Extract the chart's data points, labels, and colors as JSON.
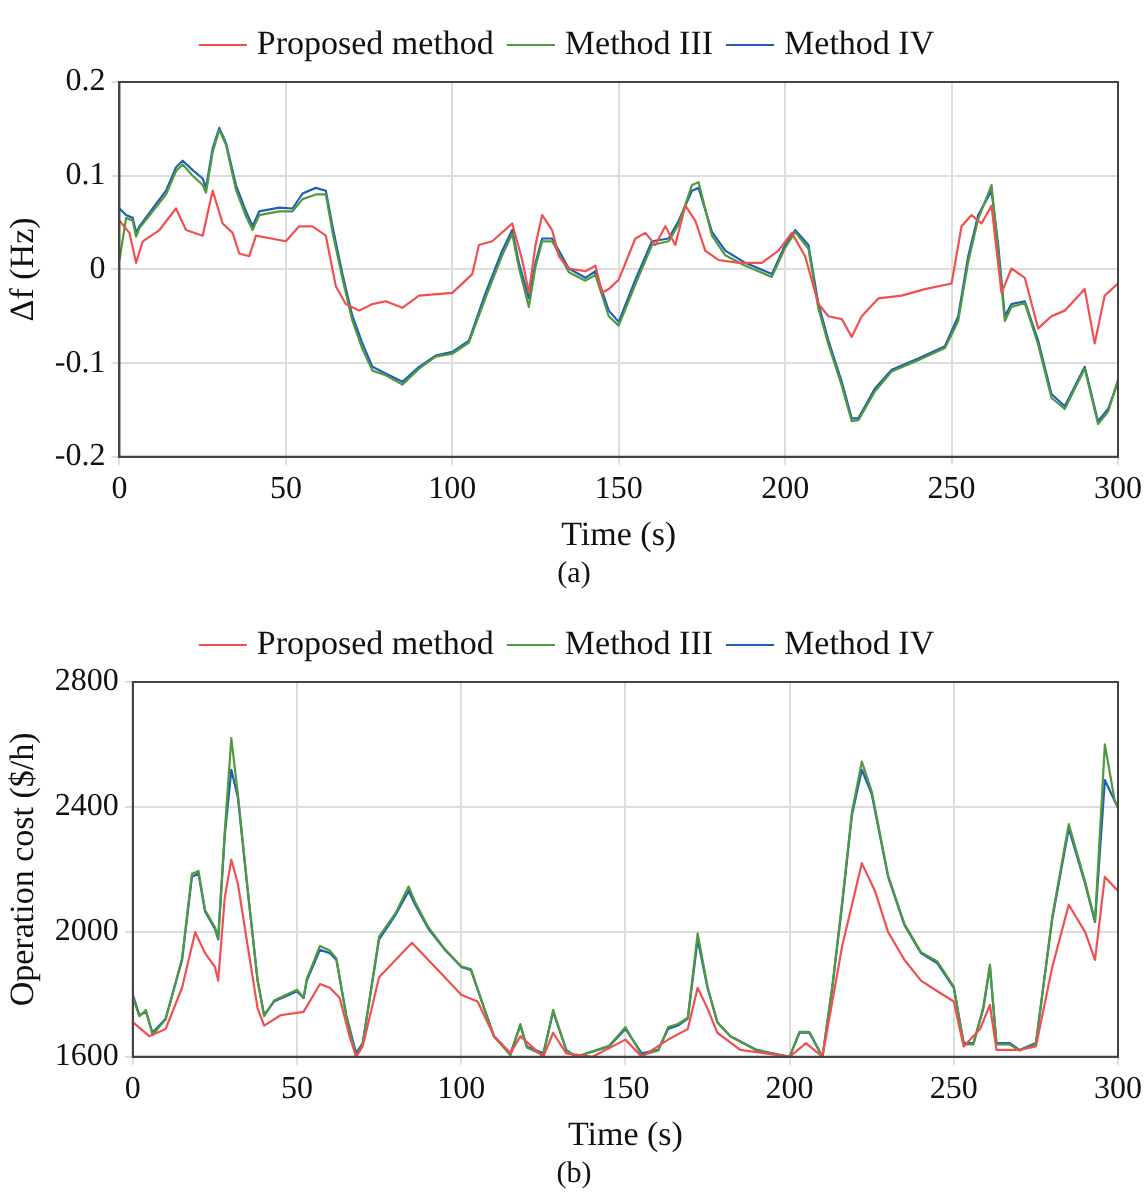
{
  "chart_data": [
    {
      "type": "line",
      "xlabel": "Time (s)",
      "ylabel": "Δf (Hz)",
      "annotations": [
        "(a)"
      ],
      "xlim": [
        0,
        300
      ],
      "xticks": [
        0,
        50,
        100,
        150,
        200,
        250,
        300
      ],
      "ylim": [
        -0.2,
        0.2
      ],
      "yticks": [
        -0.2,
        -0.1,
        0,
        0.1,
        0.2
      ],
      "grid": true,
      "legend": "top",
      "series": [
        {
          "name": "Proposed method",
          "color": "#f05050",
          "x": [
            0,
            3,
            5,
            7,
            12,
            17,
            20,
            25,
            28,
            31,
            34,
            36,
            39,
            41,
            50,
            54,
            58,
            62,
            65,
            68,
            72,
            76,
            80,
            85,
            90,
            100,
            106,
            108,
            112,
            118,
            121,
            123,
            125,
            127,
            130,
            132,
            135,
            140,
            143,
            145,
            147,
            150,
            155,
            158,
            161,
            164,
            167,
            170,
            173,
            176,
            180,
            186,
            193,
            198,
            202,
            206,
            210,
            213,
            217,
            220,
            223,
            228,
            235,
            242,
            250,
            253,
            256,
            259,
            262,
            265,
            268,
            272,
            276,
            280,
            284,
            290,
            293,
            296,
            300
          ],
          "values": [
            0.052,
            0.039,
            0.007,
            0.03,
            0.042,
            0.065,
            0.042,
            0.036,
            0.084,
            0.049,
            0.039,
            0.017,
            0.014,
            0.036,
            0.03,
            0.046,
            0.046,
            0.036,
            -0.018,
            -0.037,
            -0.044,
            -0.037,
            -0.034,
            -0.041,
            -0.028,
            -0.025,
            -0.005,
            0.026,
            0.03,
            0.049,
            0.01,
            -0.025,
            0.026,
            0.058,
            0.042,
            0.014,
            0.001,
            -0.002,
            0.004,
            -0.025,
            -0.021,
            -0.011,
            0.033,
            0.039,
            0.026,
            0.046,
            0.026,
            0.068,
            0.052,
            0.02,
            0.01,
            0.007,
            0.007,
            0.02,
            0.039,
            0.014,
            -0.037,
            -0.05,
            -0.053,
            -0.072,
            -0.05,
            -0.031,
            -0.028,
            -0.021,
            -0.015,
            0.046,
            0.058,
            0.049,
            0.068,
            -0.025,
            0.001,
            -0.009,
            -0.063,
            -0.05,
            -0.044,
            -0.021,
            -0.079,
            -0.028,
            -0.015
          ]
        },
        {
          "name": "Method III",
          "color": "#4f9a3c",
          "x": [
            0,
            2,
            4,
            5,
            6,
            10,
            14,
            17,
            19,
            22,
            25,
            26,
            28,
            30,
            32,
            35,
            38,
            40,
            42,
            48,
            52,
            55,
            59,
            62,
            64,
            67,
            70,
            73,
            76,
            80,
            85,
            90,
            95,
            100,
            105,
            110,
            115,
            118,
            120,
            123,
            125,
            127,
            130,
            135,
            140,
            143,
            147,
            150,
            155,
            160,
            165,
            168,
            172,
            174,
            178,
            182,
            188,
            196,
            200,
            203,
            207,
            210,
            213,
            217,
            220,
            222,
            227,
            232,
            240,
            248,
            252,
            255,
            258,
            262,
            264,
            266,
            268,
            272,
            276,
            280,
            284,
            290,
            294,
            297,
            300
          ],
          "values": [
            0.01,
            0.055,
            0.052,
            0.035,
            0.044,
            0.062,
            0.08,
            0.105,
            0.112,
            0.1,
            0.09,
            0.082,
            0.125,
            0.149,
            0.133,
            0.085,
            0.057,
            0.042,
            0.058,
            0.062,
            0.062,
            0.075,
            0.08,
            0.08,
            0.04,
            -0.01,
            -0.055,
            -0.085,
            -0.108,
            -0.113,
            -0.123,
            -0.106,
            -0.093,
            -0.09,
            -0.078,
            -0.03,
            0.015,
            0.038,
            0.002,
            -0.04,
            0.003,
            0.03,
            0.03,
            -0.003,
            -0.012,
            -0.006,
            -0.05,
            -0.06,
            -0.016,
            0.026,
            0.03,
            0.048,
            0.09,
            0.093,
            0.036,
            0.015,
            0.004,
            -0.008,
            0.023,
            0.04,
            0.022,
            -0.042,
            -0.08,
            -0.124,
            -0.162,
            -0.161,
            -0.13,
            -0.109,
            -0.097,
            -0.084,
            -0.055,
            0.008,
            0.054,
            0.09,
            0.02,
            -0.055,
            -0.04,
            -0.036,
            -0.08,
            -0.137,
            -0.149,
            -0.106,
            -0.165,
            -0.152,
            -0.118
          ]
        },
        {
          "name": "Method IV",
          "color": "#1f5fb8",
          "x": [
            0,
            2,
            4,
            5,
            6,
            10,
            14,
            17,
            19,
            22,
            25,
            26,
            28,
            30,
            32,
            35,
            38,
            40,
            42,
            48,
            52,
            55,
            59,
            62,
            64,
            67,
            70,
            73,
            76,
            80,
            85,
            90,
            95,
            100,
            105,
            110,
            115,
            118,
            120,
            123,
            125,
            127,
            130,
            135,
            140,
            143,
            147,
            150,
            155,
            160,
            165,
            168,
            172,
            174,
            178,
            182,
            188,
            196,
            200,
            203,
            207,
            210,
            213,
            217,
            220,
            222,
            227,
            232,
            240,
            248,
            252,
            255,
            258,
            262,
            264,
            266,
            268,
            272,
            276,
            280,
            284,
            290,
            294,
            297,
            300
          ],
          "values": [
            0.065,
            0.058,
            0.055,
            0.039,
            0.046,
            0.065,
            0.084,
            0.109,
            0.116,
            0.106,
            0.097,
            0.087,
            0.129,
            0.151,
            0.135,
            0.09,
            0.062,
            0.046,
            0.062,
            0.066,
            0.065,
            0.081,
            0.087,
            0.084,
            0.046,
            -0.005,
            -0.05,
            -0.079,
            -0.104,
            -0.111,
            -0.12,
            -0.104,
            -0.092,
            -0.088,
            -0.076,
            -0.025,
            0.02,
            0.042,
            0.007,
            -0.031,
            0.007,
            0.033,
            0.033,
            0.001,
            -0.009,
            -0.002,
            -0.044,
            -0.056,
            -0.011,
            0.03,
            0.033,
            0.052,
            0.084,
            0.087,
            0.04,
            0.02,
            0.007,
            -0.005,
            0.026,
            0.042,
            0.026,
            -0.037,
            -0.076,
            -0.12,
            -0.159,
            -0.159,
            -0.127,
            -0.107,
            -0.095,
            -0.082,
            -0.05,
            0.014,
            0.058,
            0.084,
            0.026,
            -0.05,
            -0.037,
            -0.034,
            -0.076,
            -0.133,
            -0.146,
            -0.104,
            -0.162,
            -0.149,
            -0.12
          ]
        }
      ]
    },
    {
      "type": "line",
      "xlabel": "Time (s)",
      "ylabel": "Operation cost ($/h)",
      "annotations": [
        "(b)"
      ],
      "xlim": [
        0,
        300
      ],
      "xticks": [
        0,
        50,
        100,
        150,
        200,
        250,
        300
      ],
      "ylim": [
        1600,
        2800
      ],
      "yticks": [
        1600,
        2000,
        2400,
        2800
      ],
      "grid": true,
      "legend": "top",
      "series": [
        {
          "name": "Proposed method",
          "color": "#f05050",
          "x": [
            0,
            5,
            10,
            15,
            19,
            22,
            25,
            26,
            28,
            30,
            32,
            35,
            38,
            40,
            45,
            52,
            57,
            60,
            63,
            66,
            68,
            70,
            75,
            80,
            85,
            90,
            95,
            100,
            105,
            110,
            115,
            118,
            125,
            128,
            132,
            140,
            150,
            155,
            163,
            169,
            172,
            175,
            178,
            185,
            200,
            205,
            210,
            216,
            222,
            226,
            230,
            235,
            240,
            245,
            250,
            253,
            258,
            261,
            263,
            270,
            275,
            280,
            285,
            290,
            293,
            296,
            300
          ],
          "values": [
            1711,
            1666,
            1689,
            1821,
            1999,
            1932,
            1888,
            1844,
            2109,
            2231,
            2154,
            1954,
            1755,
            1700,
            1733,
            1744,
            1833,
            1821,
            1788,
            1666,
            1600,
            1633,
            1855,
            1910,
            1965,
            1910,
            1855,
            1799,
            1777,
            1666,
            1611,
            1666,
            1600,
            1677,
            1611,
            1600,
            1655,
            1600,
            1655,
            1689,
            1821,
            1755,
            1677,
            1622,
            1600,
            1644,
            1600,
            1954,
            2220,
            2131,
            1999,
            1910,
            1844,
            1810,
            1777,
            1633,
            1689,
            1766,
            1622,
            1622,
            1633,
            1888,
            2087,
            1999,
            1910,
            2176,
            2131
          ]
        },
        {
          "name": "Method III",
          "color": "#4f9a3c",
          "x": [
            0,
            2,
            4,
            6,
            10,
            15,
            18,
            20,
            22,
            25,
            26,
            28,
            30,
            32,
            35,
            38,
            40,
            43,
            50,
            52,
            53,
            57,
            60,
            62,
            65,
            68,
            70,
            75,
            80,
            84,
            86,
            90,
            95,
            100,
            103,
            107,
            110,
            115,
            118,
            120,
            125,
            128,
            132,
            135,
            145,
            150,
            155,
            160,
            163,
            166,
            169,
            172,
            175,
            178,
            182,
            190,
            200,
            203,
            206,
            210,
            213,
            216,
            219,
            222,
            225,
            230,
            235,
            240,
            245,
            250,
            253,
            256,
            259,
            261,
            263,
            267,
            270,
            275,
            280,
            285,
            290,
            293,
            296,
            299,
            300
          ],
          "values": [
            1790,
            1730,
            1750,
            1670,
            1720,
            1915,
            2185,
            2195,
            2070,
            2015,
            1980,
            2320,
            2620,
            2440,
            2135,
            1845,
            1730,
            1780,
            1815,
            1790,
            1850,
            1955,
            1940,
            1915,
            1730,
            1600,
            1640,
            1985,
            2060,
            2145,
            2095,
            2015,
            1945,
            1890,
            1880,
            1755,
            1665,
            1605,
            1705,
            1630,
            1605,
            1750,
            1620,
            1600,
            1635,
            1695,
            1605,
            1620,
            1695,
            1705,
            1725,
            1995,
            1825,
            1710,
            1665,
            1620,
            1600,
            1680,
            1680,
            1600,
            1825,
            2095,
            2385,
            2545,
            2450,
            2180,
            2025,
            1935,
            1905,
            1825,
            1640,
            1640,
            1760,
            1895,
            1640,
            1640,
            1620,
            1640,
            2050,
            2345,
            2160,
            2035,
            2600,
            2420,
            2400
          ]
        },
        {
          "name": "Method IV",
          "color": "#1f5fb8",
          "x": [
            0,
            2,
            4,
            6,
            10,
            15,
            18,
            20,
            22,
            25,
            26,
            28,
            30,
            32,
            35,
            38,
            40,
            43,
            50,
            52,
            53,
            57,
            60,
            62,
            65,
            68,
            70,
            75,
            80,
            84,
            86,
            90,
            95,
            100,
            103,
            107,
            110,
            115,
            118,
            120,
            125,
            128,
            132,
            135,
            145,
            150,
            155,
            160,
            163,
            166,
            169,
            172,
            175,
            178,
            182,
            190,
            200,
            203,
            206,
            210,
            213,
            216,
            219,
            222,
            225,
            230,
            235,
            240,
            245,
            250,
            253,
            256,
            259,
            261,
            263,
            267,
            270,
            275,
            280,
            285,
            290,
            293,
            296,
            299,
            300
          ],
          "values": [
            1799,
            1733,
            1744,
            1677,
            1722,
            1910,
            2176,
            2187,
            2065,
            2010,
            1976,
            2308,
            2519,
            2430,
            2131,
            1844,
            1733,
            1777,
            1810,
            1788,
            1844,
            1943,
            1932,
            1910,
            1733,
            1611,
            1644,
            1976,
            2054,
            2131,
            2087,
            2010,
            1943,
            1888,
            1877,
            1755,
            1666,
            1611,
            1700,
            1633,
            1611,
            1744,
            1622,
            1600,
            1633,
            1689,
            1611,
            1622,
            1689,
            1700,
            1722,
            1976,
            1821,
            1711,
            1666,
            1622,
            1600,
            1677,
            1677,
            1600,
            1821,
            2087,
            2375,
            2519,
            2441,
            2176,
            2021,
            1932,
            1899,
            1821,
            1644,
            1644,
            1755,
            1888,
            1644,
            1644,
            1622,
            1644,
            2043,
            2331,
            2154,
            2032,
            2486,
            2419,
            2397
          ]
        }
      ]
    }
  ]
}
